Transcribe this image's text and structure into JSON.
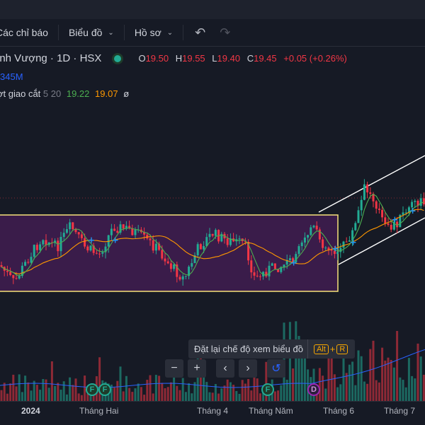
{
  "toolbar": {
    "indicators_label": "Các chỉ báo",
    "chart_label": "Biểu đồ",
    "profile_label": "Hồ sơ",
    "undo_icon": "undo-icon",
    "redo_icon": "redo-icon"
  },
  "legend": {
    "symbol": "ịnh Vượng · 1D · HSX",
    "status_dot_color": "#22ab94",
    "o_label": "O",
    "o_value": "19.50",
    "h_label": "H",
    "h_value": "19.55",
    "l_label": "L",
    "l_value": "19.40",
    "c_label": "C",
    "c_value": "19.45",
    "change": "+0.05 (+0.26%)",
    "volume": "345M",
    "ma_title": "ợt giao cắt",
    "ma_params": "5 20",
    "ma_fast": "19.22",
    "ma_slow": "19.07",
    "ma_extra": "ø"
  },
  "colors": {
    "up": "#22ab94",
    "down": "#f23645",
    "ma_fast": "#4caf50",
    "ma_slow": "#ff9800",
    "box_border": "#f7e27a",
    "box_fill": "#3a1c4a",
    "channel": "#ffffff"
  },
  "tooltip": {
    "text": "Đặt lại chế độ xem biểu đồ",
    "key1": "Alt",
    "plus": "+",
    "key2": "R"
  },
  "nav": {
    "zoom_out": "−",
    "zoom_in": "+",
    "prev": "‹",
    "next": "›",
    "reset": "↺"
  },
  "events": [
    "F",
    "F",
    "F",
    "D"
  ],
  "x_axis": [
    "2024",
    "Tháng Hai",
    "Tháng 4",
    "Tháng Năm",
    "Tháng 6",
    "Tháng 7"
  ]
}
